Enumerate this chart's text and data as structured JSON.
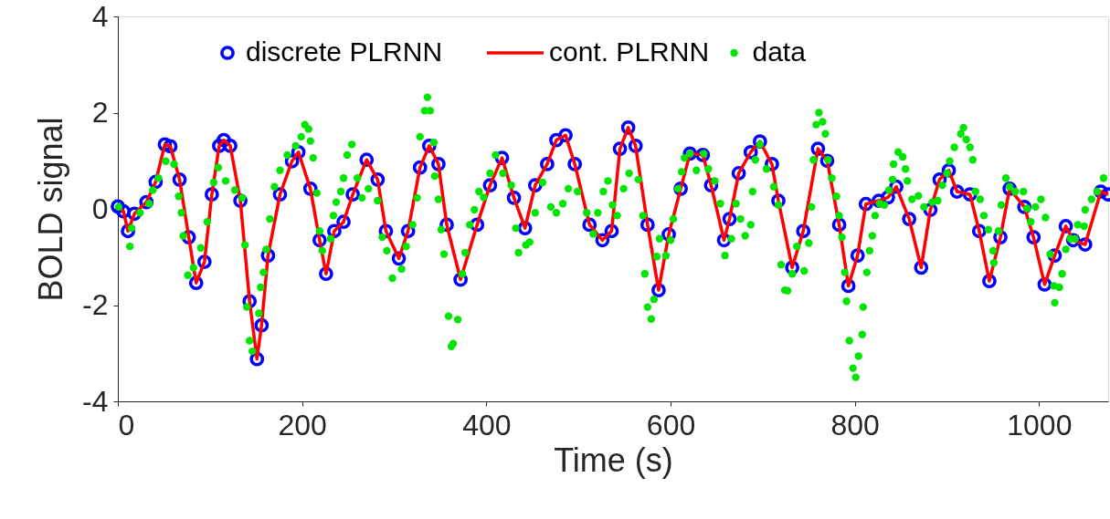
{
  "chart_data": {
    "type": "scatter",
    "xlabel": "Time (s)",
    "ylabel": "BOLD signal",
    "xlim": [
      0,
      1075
    ],
    "xticks": [
      0,
      200,
      400,
      600,
      800,
      1000
    ],
    "ylim": [
      -4,
      4
    ],
    "yticks": [
      -4,
      -2,
      0,
      2,
      4
    ],
    "grid": false,
    "legend": "top",
    "series": [
      {
        "name": "discrete PLRNN",
        "marker": "circle",
        "color": "#0000ff",
        "x": [
          0,
          6,
          11,
          18,
          31,
          41,
          51,
          57,
          67,
          77,
          85,
          94,
          102,
          110,
          115,
          122,
          133,
          143,
          151,
          156,
          163,
          176,
          189,
          196,
          209,
          219,
          226,
          235,
          245,
          255,
          270,
          282,
          291,
          305,
          315,
          328,
          338,
          348,
          357,
          372,
          390,
          404,
          417,
          430,
          442,
          453,
          466,
          476,
          486,
          496,
          512,
          526,
          536,
          545,
          554,
          562,
          575,
          587,
          598,
          611,
          621,
          635,
          644,
          658,
          664,
          674,
          687,
          697,
          710,
          717,
          732,
          744,
          760,
          770,
          783,
          793,
          803,
          812,
          826,
          836,
          845,
          859,
          872,
          882,
          892,
          902,
          911,
          925,
          935,
          946,
          958,
          968,
          984,
          994,
          1006,
          1017,
          1029,
          1037,
          1050,
          1067,
          1075
        ],
        "values": [
          0.05,
          -0.05,
          -0.46,
          -0.1,
          0.14,
          0.56,
          1.34,
          1.3,
          0.61,
          -0.59,
          -1.54,
          -1.1,
          0.3,
          1.31,
          1.43,
          1.31,
          0.17,
          -1.92,
          -3.12,
          -2.42,
          -0.97,
          0.3,
          0.99,
          1.18,
          0.42,
          -0.65,
          -1.35,
          -0.46,
          -0.27,
          0.3,
          1.02,
          0.61,
          -0.46,
          -1.03,
          -0.46,
          0.86,
          1.31,
          0.93,
          -0.33,
          -1.47,
          -0.33,
          0.49,
          1.06,
          0.23,
          -0.4,
          0.49,
          0.93,
          1.43,
          1.53,
          0.93,
          -0.33,
          -0.65,
          -0.46,
          1.25,
          1.69,
          1.31,
          -0.33,
          -1.69,
          -0.53,
          0.42,
          1.15,
          1.12,
          0.49,
          -0.65,
          -0.21,
          0.74,
          1.18,
          1.4,
          0.93,
          0.17,
          -1.22,
          -0.46,
          1.25,
          1.0,
          -0.33,
          -1.6,
          -0.97,
          0.1,
          0.17,
          0.24,
          0.46,
          -0.21,
          -1.22,
          -0.02,
          0.61,
          0.8,
          0.36,
          0.3,
          -0.46,
          -1.5,
          -0.59,
          0.42,
          0.04,
          -0.59,
          -1.57,
          -0.97,
          -0.36,
          -0.65,
          -0.74,
          0.36,
          0.3
        ]
      },
      {
        "name": "cont. PLRNN",
        "type": "line",
        "color": "#ff0000",
        "x": [
          0,
          6,
          11,
          18,
          31,
          41,
          51,
          57,
          67,
          77,
          85,
          94,
          102,
          110,
          115,
          122,
          133,
          143,
          151,
          156,
          163,
          176,
          189,
          196,
          209,
          219,
          226,
          235,
          245,
          255,
          270,
          282,
          291,
          305,
          315,
          328,
          338,
          348,
          357,
          372,
          390,
          404,
          417,
          430,
          442,
          453,
          466,
          476,
          486,
          496,
          512,
          526,
          536,
          545,
          554,
          562,
          575,
          587,
          598,
          611,
          621,
          635,
          644,
          658,
          664,
          674,
          687,
          697,
          710,
          717,
          732,
          744,
          760,
          770,
          783,
          793,
          803,
          812,
          826,
          836,
          845,
          859,
          872,
          882,
          892,
          902,
          911,
          925,
          935,
          946,
          958,
          968,
          984,
          994,
          1006,
          1017,
          1029,
          1037,
          1050,
          1067,
          1075
        ],
        "values": [
          0.05,
          -0.05,
          -0.46,
          -0.1,
          0.14,
          0.56,
          1.34,
          1.3,
          0.61,
          -0.59,
          -1.54,
          -1.1,
          0.3,
          1.31,
          1.43,
          1.31,
          0.17,
          -1.92,
          -3.12,
          -2.42,
          -0.97,
          0.3,
          0.99,
          1.18,
          0.42,
          -0.65,
          -1.35,
          -0.46,
          -0.27,
          0.3,
          1.02,
          0.61,
          -0.46,
          -1.03,
          -0.46,
          0.86,
          1.31,
          0.93,
          -0.33,
          -1.47,
          -0.33,
          0.49,
          1.06,
          0.23,
          -0.4,
          0.49,
          0.93,
          1.43,
          1.53,
          0.93,
          -0.33,
          -0.65,
          -0.46,
          1.25,
          1.69,
          1.31,
          -0.33,
          -1.69,
          -0.53,
          0.42,
          1.15,
          1.12,
          0.49,
          -0.65,
          -0.21,
          0.74,
          1.18,
          1.4,
          0.93,
          0.17,
          -1.22,
          -0.46,
          1.25,
          1.0,
          -0.33,
          -1.6,
          -0.97,
          0.1,
          0.17,
          0.24,
          0.46,
          -0.21,
          -1.22,
          -0.02,
          0.61,
          0.8,
          0.36,
          0.3,
          -0.46,
          -1.5,
          -0.59,
          0.42,
          0.04,
          -0.59,
          -1.57,
          -0.97,
          -0.36,
          -0.65,
          -0.74,
          0.36,
          0.3
        ]
      },
      {
        "name": "data",
        "marker": "circle",
        "color": "#00e600",
        "x": [
          1,
          13,
          15,
          24,
          34,
          38,
          44,
          52,
          61,
          66,
          69,
          71,
          76,
          82,
          90,
          97,
          104,
          109,
          117,
          127,
          135,
          138,
          140,
          143,
          146,
          153,
          155,
          158,
          161,
          165,
          170,
          176,
          184,
          193,
          199,
          203,
          207,
          209,
          212,
          216,
          219,
          222,
          231,
          234,
          237,
          242,
          245,
          249,
          254,
          260,
          265,
          272,
          282,
          287,
          292,
          298,
          308,
          313,
          320,
          325,
          328,
          333,
          336,
          339,
          343,
          344,
          348,
          351,
          354,
          359,
          362,
          364,
          369,
          374,
          377,
          382,
          387,
          392,
          397,
          404,
          410,
          418,
          427,
          432,
          435,
          443,
          447,
          453,
          461,
          470,
          476,
          483,
          489,
          499,
          509,
          516,
          521,
          527,
          532,
          537,
          542,
          549,
          555,
          565,
          570,
          572,
          575,
          579,
          582,
          585,
          588,
          595,
          600,
          603,
          608,
          612,
          615,
          621,
          628,
          636,
          641,
          648,
          654,
          659,
          666,
          671,
          676,
          681,
          687,
          689,
          692,
          697,
          704,
          712,
          717,
          720,
          724,
          727,
          732,
          737,
          745,
          750,
          753,
          755,
          758,
          761,
          765,
          768,
          771,
          775,
          780,
          783,
          786,
          789,
          791,
          794,
          798,
          801,
          804,
          808,
          809,
          813,
          816,
          819,
          822,
          827,
          832,
          837,
          841,
          842,
          847,
          852,
          855,
          857,
          862,
          869,
          875,
          884,
          890,
          895,
          900,
          903,
          908,
          915,
          918,
          921,
          925,
          928,
          931,
          936,
          940,
          945,
          950,
          951,
          956,
          959,
          964,
          968,
          974,
          983,
          987,
          991,
          996,
          1002,
          1007,
          1012,
          1016,
          1017,
          1022,
          1025,
          1029,
          1034,
          1039,
          1042,
          1049,
          1050,
          1057,
          1063,
          1070
        ],
        "values": [
          0.04,
          -0.78,
          -0.4,
          -0.08,
          0.11,
          0.39,
          0.64,
          0.99,
          0.93,
          0.26,
          -0.08,
          -0.56,
          -1.38,
          -1.22,
          -0.81,
          -0.27,
          0.55,
          0.86,
          0.58,
          0.39,
          0.23,
          -0.75,
          -2.04,
          -2.74,
          -2.96,
          -2.17,
          -1.63,
          -1.32,
          -0.84,
          -0.21,
          0.46,
          0.8,
          1.12,
          1.31,
          1.5,
          1.75,
          1.66,
          1.41,
          1.06,
          0.33,
          -0.46,
          -0.87,
          -0.62,
          -0.14,
          0.14,
          0.36,
          0.64,
          1.12,
          1.34,
          0.64,
          0.23,
          0.42,
          0.17,
          -0.59,
          -0.87,
          -1.44,
          -1.25,
          -0.78,
          -0.33,
          0.23,
          1.5,
          2.04,
          2.32,
          2.04,
          1.38,
          0.68,
          0.2,
          -0.43,
          -0.94,
          -2.23,
          -2.86,
          -2.8,
          -2.3,
          -1.35,
          -0.91,
          -0.33,
          -0.02,
          0.36,
          0.24,
          0.74,
          1.12,
          0.74,
          0.49,
          -0.4,
          -0.91,
          -0.75,
          -0.69,
          -0.08,
          0.55,
          0.04,
          -0.08,
          0.11,
          0.42,
          0.36,
          -0.08,
          -0.52,
          -0.08,
          0.36,
          0.58,
          0.08,
          -0.14,
          0.42,
          0.74,
          0.61,
          -0.14,
          -1.35,
          -2.04,
          -2.29,
          -1.88,
          -0.99,
          -0.62,
          -0.97,
          -0.65,
          -0.21,
          0.42,
          0.77,
          1.06,
          1.15,
          0.8,
          1.15,
          0.83,
          0.58,
          0.11,
          -0.97,
          -0.62,
          0.11,
          -0.21,
          -0.56,
          -0.33,
          0.36,
          1.02,
          1.34,
          0.83,
          0.46,
          0.08,
          -1.16,
          -1.69,
          -1.7,
          -1.35,
          -0.78,
          -1.29,
          -0.71,
          0.04,
          1.02,
          1.75,
          2.0,
          1.81,
          1.56,
          1.02,
          0.64,
          0.26,
          -0.14,
          -0.59,
          -1.32,
          -1.92,
          -2.74,
          -3.31,
          -3.5,
          -3.06,
          -2.61,
          -2.04,
          -1.32,
          -0.87,
          -0.56,
          -0.14,
          0.11,
          0.08,
          0.39,
          0.61,
          0.93,
          1.18,
          1.08,
          0.83,
          0.58,
          0.2,
          0.27,
          0.04,
          0.14,
          0.17,
          0.49,
          0.74,
          0.99,
          1.28,
          1.56,
          1.69,
          1.44,
          1.28,
          1.02,
          0.36,
          0.2,
          -0.14,
          -0.43,
          -0.87,
          -1.12,
          -0.46,
          0.08,
          0.64,
          0.46,
          0.36,
          0.36,
          0.01,
          -0.27,
          0.04,
          0.2,
          -0.18,
          -0.94,
          -1.6,
          -1.95,
          -1.63,
          -1.35,
          -0.84,
          -0.62,
          -0.62,
          -0.33,
          -0.36,
          -0.02,
          0.2,
          0.36,
          0.64
        ]
      }
    ]
  }
}
